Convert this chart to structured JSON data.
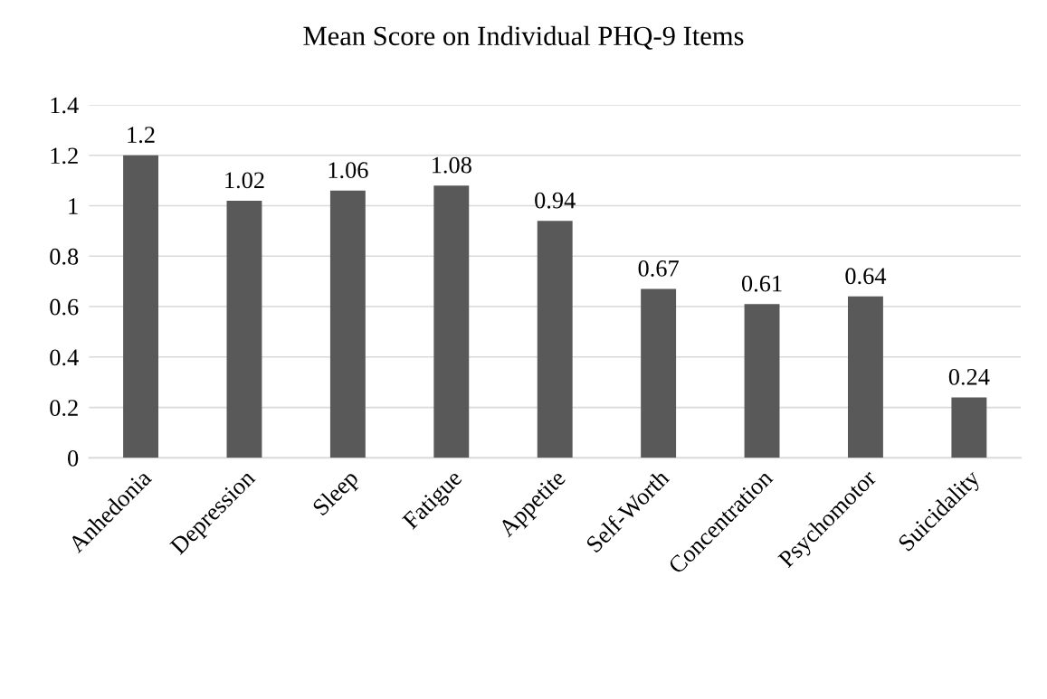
{
  "chart_data": {
    "type": "bar",
    "title": "Mean Score on Individual PHQ-9 Items",
    "categories": [
      "Anhedonia",
      "Depression",
      "Sleep",
      "Fatigue",
      "Appetite",
      "Self-Worth",
      "Concentration",
      "Psychomotor",
      "Suicidality"
    ],
    "values": [
      1.2,
      1.02,
      1.06,
      1.08,
      0.94,
      0.67,
      0.61,
      0.64,
      0.24
    ],
    "color": "#595959",
    "ylim": [
      0,
      1.4
    ],
    "yticks": [
      0,
      0.2,
      0.4,
      0.6,
      0.8,
      1,
      1.2,
      1.4
    ],
    "grid": "y",
    "data_labels": true,
    "legend": false
  }
}
